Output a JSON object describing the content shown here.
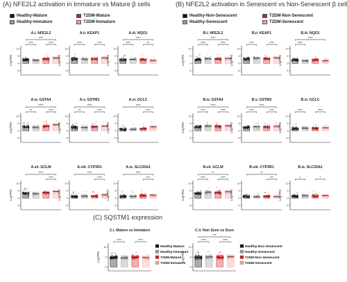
{
  "headers": {
    "a": "(A) NFE2L2 activation in Immature vs Mature β cells",
    "b": "(B) NFE2L2 activation in Senescent vs Non-Senescent β cells",
    "c": "(C) SQSTM1 expression"
  },
  "legend_a": [
    {
      "label": "Healthy-Mature",
      "color": "#111111"
    },
    {
      "label": "T2DM-Mature",
      "color": "#d32020"
    },
    {
      "label": "Healthy-Immature",
      "color": "#9a9a9a"
    },
    {
      "label": "T2DM-Immature",
      "color": "#f2a0a0"
    }
  ],
  "legend_b": [
    {
      "label": "Healthy-Non-Senescent",
      "color": "#111111"
    },
    {
      "label": "T2DM-Non-Senescent",
      "color": "#d32020"
    },
    {
      "label": "Healthy-Senescent",
      "color": "#9a9a9a"
    },
    {
      "label": "T2DM-Senescent",
      "color": "#f2a0a0"
    }
  ],
  "chart_data": {
    "type": "scatter",
    "ylabel": "LogTPM",
    "groups_a": [
      "Healthy-Mature",
      "Healthy-Immature",
      "T2DM-Mature",
      "T2DM-Immature"
    ],
    "groups_b": [
      "Healthy-Non-Senescent",
      "Healthy-Senescent",
      "T2DM-Non-Senescent",
      "T2DM-Senescent"
    ],
    "colors": [
      "#111111",
      "#9a9a9a",
      "#d32020",
      "#f2a0a0"
    ],
    "panels": [
      {
        "id": "A.i",
        "title": "A.i.  NFE2L2",
        "yticks": [
          "10",
          "5",
          "0",
          "-5"
        ],
        "ylim": [
          -8,
          12
        ],
        "values": [
          2.6,
          2.2,
          3.0,
          3.8
        ],
        "sig": [
          [
            0,
            1,
            "****"
          ],
          [
            2,
            3,
            "****"
          ],
          [
            0,
            3,
            "****"
          ]
        ]
      },
      {
        "id": "A.ii",
        "title": "A.ii.  KEAP1",
        "yticks": [
          "10",
          "5",
          "0",
          "-5"
        ],
        "ylim": [
          -8,
          12
        ],
        "values": [
          3.0,
          2.9,
          3.0,
          3.8
        ],
        "sig": [
          [
            0,
            1,
            "****"
          ],
          [
            2,
            3,
            "****"
          ]
        ]
      },
      {
        "id": "A.iii",
        "title": "A.iii.  NQO1",
        "yticks": [
          "10",
          "5",
          "0",
          "-5"
        ],
        "ylim": [
          -8,
          12
        ],
        "values": [
          2.4,
          2.7,
          2.6,
          2.0
        ],
        "sig": [
          [
            0,
            1,
            "****"
          ],
          [
            2,
            3,
            "**"
          ],
          [
            0,
            3,
            "****"
          ]
        ]
      },
      {
        "id": "A.iv",
        "title": "A.iv.  GSTA4",
        "yticks": [
          "10",
          "5",
          "0",
          "-5"
        ],
        "ylim": [
          -8,
          12
        ],
        "values": [
          2.8,
          2.4,
          3.2,
          4.2
        ],
        "sig": [
          [
            0,
            1,
            "**"
          ],
          [
            2,
            3,
            "****"
          ],
          [
            0,
            3,
            "****"
          ]
        ]
      },
      {
        "id": "A.v",
        "title": "A.v.  GSTM3",
        "yticks": [
          "10",
          "5",
          "0",
          "-5"
        ],
        "ylim": [
          -8,
          12
        ],
        "values": [
          2.4,
          2.2,
          2.6,
          3.2
        ],
        "sig": [
          [
            0,
            1,
            "**"
          ],
          [
            2,
            3,
            "****"
          ],
          [
            0,
            3,
            "****"
          ]
        ]
      },
      {
        "id": "A.vi",
        "title": "A.vi.  GCLC",
        "yticks": [
          "10",
          "5",
          "0",
          "-5"
        ],
        "ylim": [
          -8,
          12
        ],
        "values": [
          1.0,
          1.0,
          1.4,
          2.6
        ],
        "sig": [
          [
            2,
            3,
            "****"
          ],
          [
            0,
            3,
            "****"
          ]
        ]
      },
      {
        "id": "A.vii",
        "title": "A.vii.  GCLM",
        "yticks": [
          "10",
          "5",
          "0",
          "-5"
        ],
        "ylim": [
          -8,
          12
        ],
        "values": [
          3.4,
          3.0,
          3.8,
          4.6
        ],
        "sig": [
          [
            2,
            3,
            "****"
          ],
          [
            0,
            3,
            "****"
          ]
        ]
      },
      {
        "id": "A.viii",
        "title": "A.viii.  CYP2R1",
        "yticks": [
          "10",
          "5",
          "0",
          "-5"
        ],
        "ylim": [
          -8,
          12
        ],
        "values": [
          1.2,
          1.4,
          1.4,
          2.2
        ],
        "sig": [
          [
            2,
            3,
            "****"
          ],
          [
            0,
            3,
            "****"
          ]
        ]
      },
      {
        "id": "A.ix",
        "title": "A.ix.  SLC35A2",
        "yticks": [
          "10",
          "5",
          "0",
          "-5"
        ],
        "ylim": [
          -8,
          12
        ],
        "values": [
          1.2,
          1.2,
          1.8,
          2.0
        ],
        "sig": [
          [
            2,
            3,
            "***"
          ],
          [
            0,
            3,
            "****"
          ]
        ]
      },
      {
        "id": "B.i",
        "title": "B.i.  NFE2L2",
        "yticks": [
          "10",
          "5",
          "0",
          "-5"
        ],
        "ylim": [
          -8,
          12
        ],
        "values": [
          2.6,
          3.2,
          3.0,
          3.4
        ],
        "sig": [
          [
            0,
            1,
            "****"
          ],
          [
            2,
            3,
            "****"
          ],
          [
            0,
            3,
            "****"
          ]
        ]
      },
      {
        "id": "B.ii",
        "title": "B.ii.  KEAP1",
        "yticks": [
          "10",
          "5",
          "0",
          "-5"
        ],
        "ylim": [
          -8,
          12
        ],
        "values": [
          3.0,
          3.6,
          3.2,
          3.8
        ],
        "sig": [
          [
            0,
            1,
            "****"
          ],
          [
            2,
            3,
            "****"
          ]
        ]
      },
      {
        "id": "B.iii",
        "title": "B.iii.  NQO1",
        "yticks": [
          "10",
          "5",
          "0",
          "-5"
        ],
        "ylim": [
          -8,
          12
        ],
        "values": [
          2.2,
          1.8,
          2.4,
          1.8
        ],
        "sig": [
          [
            0,
            1,
            "****"
          ],
          [
            0,
            3,
            "****"
          ]
        ]
      },
      {
        "id": "B.iv",
        "title": "B.iv.  GSTA4",
        "yticks": [
          "10",
          "5",
          "0",
          "-5"
        ],
        "ylim": [
          -8,
          12
        ],
        "values": [
          2.6,
          3.2,
          3.0,
          3.4
        ],
        "sig": [
          [
            0,
            1,
            "****"
          ],
          [
            2,
            3,
            "****"
          ],
          [
            0,
            3,
            "****"
          ]
        ]
      },
      {
        "id": "B.v",
        "title": "B.v.  GSTM3",
        "yticks": [
          "10",
          "5",
          "0",
          "-5"
        ],
        "ylim": [
          -8,
          12
        ],
        "values": [
          2.4,
          2.8,
          2.6,
          3.0
        ],
        "sig": [
          [
            0,
            1,
            "****"
          ],
          [
            2,
            3,
            "****"
          ],
          [
            0,
            3,
            "****"
          ]
        ]
      },
      {
        "id": "B.vi",
        "title": "B.vi.  GCLC",
        "yticks": [
          "10",
          "5",
          "0",
          "-5"
        ],
        "ylim": [
          -8,
          12
        ],
        "values": [
          1.4,
          1.8,
          1.6,
          2.0
        ],
        "sig": [
          [
            0,
            1,
            "****"
          ],
          [
            2,
            3,
            "****"
          ]
        ]
      },
      {
        "id": "B.vii",
        "title": "B.vii.  GCLM",
        "yticks": [
          "10",
          "5",
          "0",
          "-5"
        ],
        "ylim": [
          -8,
          12
        ],
        "values": [
          3.4,
          4.0,
          3.8,
          4.4
        ],
        "sig": [
          [
            0,
            1,
            "****"
          ],
          [
            2,
            3,
            "****"
          ],
          [
            0,
            3,
            "**"
          ]
        ]
      },
      {
        "id": "B.viii",
        "title": "B.viii.  CYP2R1",
        "yticks": [
          "10",
          "5",
          "0",
          "-5"
        ],
        "ylim": [
          -8,
          12
        ],
        "values": [
          1.2,
          1.0,
          1.4,
          1.0
        ],
        "sig": [
          [
            2,
            3,
            "***"
          ],
          [
            0,
            3,
            "**"
          ]
        ]
      },
      {
        "id": "B.ix",
        "title": "B.ix.  SLC35A2",
        "yticks": [
          "10",
          "5",
          "0",
          "-5"
        ],
        "ylim": [
          -8,
          12
        ],
        "values": [
          1.2,
          1.6,
          1.4,
          1.8
        ],
        "sig": [
          [
            0,
            1,
            "*"
          ],
          [
            2,
            3,
            "*"
          ]
        ]
      }
    ],
    "sqstm1": [
      {
        "id": "C.i",
        "title": "C.i.  Mature vs Immature",
        "yticks": [
          "10",
          "5",
          "0"
        ],
        "ylim": [
          -2,
          12
        ],
        "values": [
          4.8,
          4.6,
          4.9,
          4.7
        ],
        "sig": [
          [
            0,
            1,
            "****"
          ],
          [
            2,
            3,
            "****"
          ]
        ],
        "legend": [
          "Healthy-Mature",
          "Healthy-Immature",
          "T2DM-Mature",
          "T2DM-Immature"
        ]
      },
      {
        "id": "C.ii",
        "title": "C.ii.  Non Scen vs Scen",
        "yticks": [
          "10",
          "5",
          "0"
        ],
        "ylim": [
          -2,
          12
        ],
        "values": [
          4.8,
          5.0,
          4.9,
          5.1
        ],
        "sig": [
          [
            0,
            1,
            "****"
          ],
          [
            2,
            3,
            "****"
          ],
          [
            0,
            3,
            "***"
          ]
        ],
        "legend": [
          "Healthy-Non-Senescent",
          "Healthy-Senescent",
          "T2DM-Non-Senescent",
          "T2DM-Senescent"
        ]
      }
    ]
  }
}
